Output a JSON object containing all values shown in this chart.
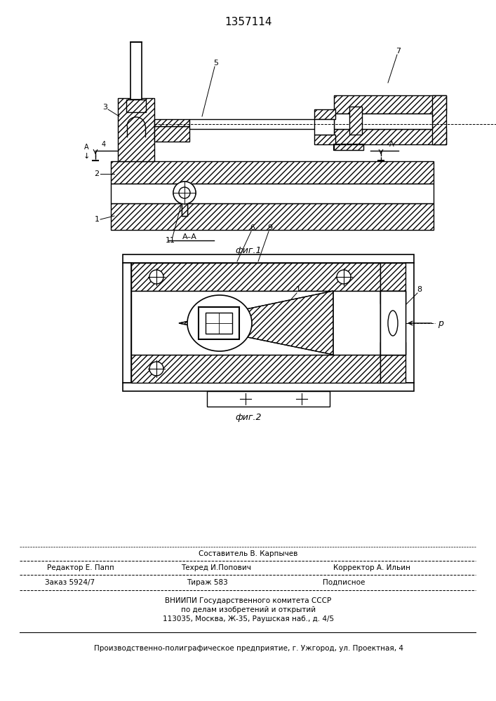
{
  "patent_number": "1357114",
  "fig1_label": "фиг.1",
  "fig2_label": "фиг.2",
  "footer_line1_center": "Составитель В. Карпычев",
  "footer_line2_left": "Редактор Е. Папп",
  "footer_line2_center": "Техред И.Попович",
  "footer_line2_right": "Корректор А. Ильин",
  "footer_line3_left": "Заказ 5924/7",
  "footer_line3_center": "Тираж 583",
  "footer_line3_right": "Подписное",
  "footer_line4": "ВНИИПИ Государственного комитета СССР",
  "footer_line5": "по делам изобретений и открытий",
  "footer_line6": "113035, Москва, Ж-35, Раушская наб., д. 4/5",
  "footer_bottom": "Производственно-полиграфическое предприятие, г. Ужгород, ул. Проектная, 4",
  "bg_color": "#ffffff"
}
